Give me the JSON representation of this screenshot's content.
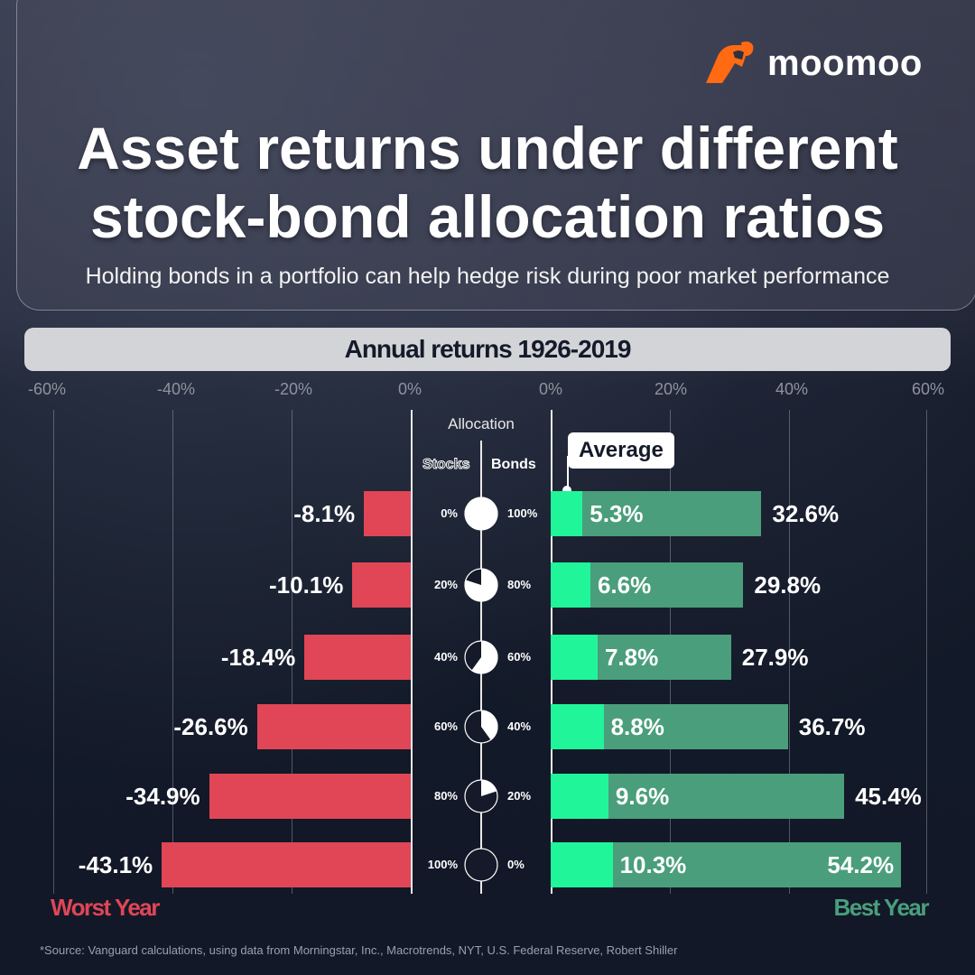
{
  "brand": {
    "logo_name": "moomoo",
    "logo_color": "#ff6a13"
  },
  "header": {
    "title_line1": "Asset returns under different",
    "title_line2": "stock-bond allocation ratios",
    "subtitle": "Holding bonds in a portfolio can help hedge risk during poor market performance"
  },
  "chart_header": "Annual returns 1926-2019",
  "allocation": {
    "title": "Allocation",
    "stocks_label": "Stocks",
    "bonds_label": "Bonds"
  },
  "average_label": "Average",
  "legend": {
    "worst": "Worst Year",
    "best": "Best Year"
  },
  "source": "*Source: Vanguard calculations, using data from Morningstar, Inc., Macrotrends, NYT, U.S. Federal Reserve, Robert Shiller",
  "colors": {
    "worst": "#e04656",
    "best": "#4a9e7c",
    "average": "#20f59a",
    "background": "#141a29"
  },
  "axis": {
    "left_ticks": [
      "-60%",
      "-40%",
      "-20%",
      "0%"
    ],
    "right_ticks": [
      "0%",
      "20%",
      "40%",
      "60%"
    ]
  },
  "chart_data": {
    "type": "bar",
    "title": "Annual returns 1926-2019",
    "subtitle": "Asset returns under different stock-bond allocation ratios",
    "categories": [
      "0% stocks / 100% bonds",
      "20% stocks / 80% bonds",
      "40% stocks / 60% bonds",
      "60% stocks / 40% bonds",
      "80% stocks / 20% bonds",
      "100% stocks / 0% bonds"
    ],
    "stocks_pct": [
      "0%",
      "20%",
      "40%",
      "60%",
      "80%",
      "100%"
    ],
    "bonds_pct": [
      "100%",
      "80%",
      "60%",
      "40%",
      "20%",
      "0%"
    ],
    "series": [
      {
        "name": "Worst Year",
        "values": [
          -8.1,
          -10.1,
          -18.4,
          -26.6,
          -34.9,
          -43.1
        ],
        "labels": [
          "-8.1%",
          "-10.1%",
          "-18.4%",
          "-26.6%",
          "-34.9%",
          "-43.1%"
        ]
      },
      {
        "name": "Average",
        "values": [
          5.3,
          6.6,
          7.8,
          8.8,
          9.6,
          10.3
        ],
        "labels": [
          "5.3%",
          "6.6%",
          "7.8%",
          "8.8%",
          "9.6%",
          "10.3%"
        ]
      },
      {
        "name": "Best Year",
        "values": [
          32.6,
          29.8,
          27.9,
          36.7,
          45.4,
          54.2
        ],
        "labels": [
          "32.6%",
          "29.8%",
          "27.9%",
          "36.7%",
          "45.4%",
          "54.2%"
        ]
      }
    ],
    "xlabel": "",
    "ylabel": "",
    "xlim": [
      -60,
      60
    ],
    "legend": [
      "Worst Year",
      "Average",
      "Best Year"
    ],
    "grid": true
  }
}
